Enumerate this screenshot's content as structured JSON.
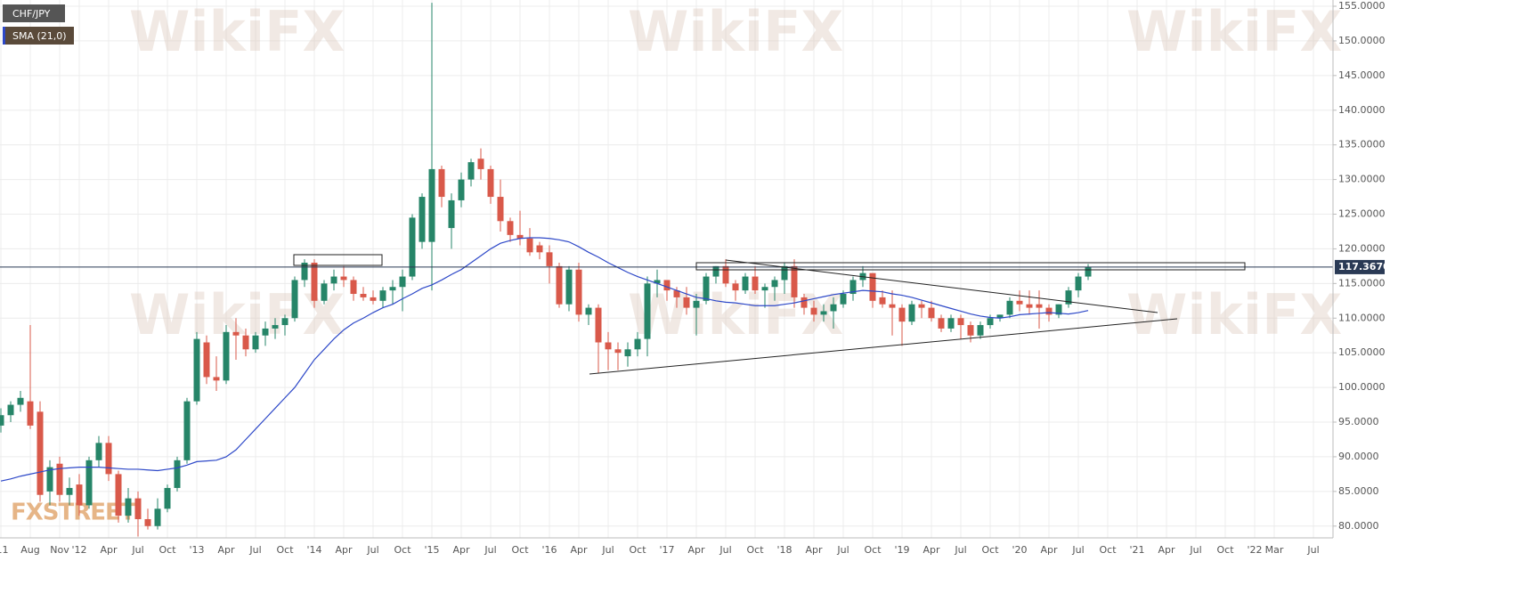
{
  "chart_data": {
    "type": "candlestick",
    "watermark": "WikiFX",
    "logo": "FXSTREET",
    "categories": [
      "'11",
      null,
      null,
      "Aug",
      null,
      null,
      "Nov",
      null,
      "'12",
      null,
      null,
      "Apr",
      null,
      null,
      "Jul",
      null,
      null,
      "Oct",
      null,
      null,
      "'13",
      null,
      null,
      "Apr",
      null,
      null,
      "Jul",
      null,
      null,
      "Oct",
      null,
      null,
      "'14",
      null,
      null,
      "Apr",
      null,
      null,
      "Jul",
      null,
      null,
      "Oct",
      null,
      null,
      "'15",
      null,
      null,
      "Apr",
      null,
      null,
      "Jul",
      null,
      null,
      "Oct",
      null,
      null,
      "'16",
      null,
      null,
      "Apr",
      null,
      null,
      "Jul",
      null,
      null,
      "Oct",
      null,
      null,
      "'17",
      null,
      null,
      "Apr",
      null,
      null,
      "Jul",
      null,
      null,
      "Oct",
      null,
      null,
      "'18",
      null,
      null,
      "Apr",
      null,
      null,
      "Jul",
      null,
      null,
      "Oct",
      null,
      null,
      "'19",
      null,
      null,
      "Apr",
      null,
      null,
      "Jul",
      null,
      null,
      "Oct",
      null,
      null,
      "'20",
      null,
      null,
      "Apr",
      null,
      null,
      "Jul",
      null,
      null,
      "Oct",
      null,
      null,
      "'21",
      null,
      null,
      "Apr",
      null,
      null,
      "Jul",
      null,
      null,
      "Oct",
      null,
      null,
      "'22",
      null,
      "Mar",
      null,
      null,
      null,
      "Jul",
      null
    ],
    "series": [
      {
        "name": "CHF/JPY",
        "up_color": "#268568",
        "down_color": "#d9594a",
        "label_color": "#555555",
        "open": [
          94.5,
          96,
          97.5,
          98,
          96.5,
          85,
          89,
          84.5,
          86,
          83,
          89.5,
          92,
          87.5,
          81.5,
          84,
          81,
          80,
          82.5,
          85.5,
          89.5,
          98,
          106.5,
          101.5,
          101,
          108,
          107.5,
          105.5,
          107.5,
          108.5,
          109,
          110,
          115.5,
          118,
          112.5,
          115,
          116,
          115.5,
          113.5,
          113,
          112.5,
          114,
          114.5,
          116,
          121,
          121,
          131.5,
          123,
          127,
          130,
          133,
          131.5,
          127.5,
          124,
          122,
          121.5,
          120.5,
          119.5,
          117.5,
          112,
          117,
          110.5,
          111.5,
          106.5,
          105.5,
          104.5,
          105.5,
          107,
          115,
          115.5,
          114,
          113,
          111.5,
          112.5,
          116,
          117.5,
          115,
          114,
          116,
          114,
          114.5,
          115.5,
          117.5,
          113,
          111.5,
          110.5,
          111,
          112,
          113.5,
          115.5,
          116.5,
          113,
          112,
          111.5,
          109.5,
          112,
          111.5,
          110,
          108.5,
          110,
          109,
          107.5,
          109,
          110,
          110.5,
          112.5,
          112,
          112,
          111.5,
          110.5,
          112,
          114,
          116,
          null,
          null,
          null,
          null,
          null,
          null,
          null,
          null,
          null,
          null,
          null,
          null,
          null,
          null,
          null,
          null,
          null,
          null,
          null,
          null,
          null,
          null,
          null,
          null
        ],
        "high": [
          97,
          98,
          99.5,
          109,
          98,
          89.5,
          90,
          87,
          87.5,
          90,
          93,
          93,
          88,
          85.5,
          85,
          82.5,
          84,
          86,
          90,
          98.5,
          108,
          107.5,
          104.5,
          109,
          110,
          108.5,
          108,
          109.5,
          110,
          110.5,
          116,
          118.5,
          118.5,
          115.5,
          117,
          117.5,
          116,
          114.5,
          114,
          114.5,
          115.5,
          117,
          125,
          128,
          155.5,
          132,
          128,
          131,
          133,
          134.5,
          132,
          130,
          124.5,
          125.5,
          123,
          121,
          120.5,
          118,
          117.5,
          118,
          112,
          112,
          108,
          106.5,
          106.5,
          108,
          116,
          117,
          115.5,
          114.5,
          114.5,
          113.5,
          116.5,
          117.5,
          118.5,
          115.5,
          116.5,
          117.5,
          115,
          116,
          118,
          118.5,
          113.5,
          112.5,
          112,
          113,
          114,
          116,
          117.5,
          116.5,
          114,
          114,
          112,
          112.5,
          112.5,
          112.5,
          110.5,
          110.5,
          110.5,
          109.5,
          109.5,
          110.5,
          110.5,
          113,
          114,
          114,
          114,
          112,
          112,
          114.5,
          116.5,
          117.8,
          null,
          null,
          null,
          null,
          null,
          null,
          null,
          null,
          null,
          null,
          null,
          null,
          null,
          null,
          null,
          null,
          null,
          null,
          null,
          null,
          null,
          null,
          null,
          null
        ],
        "low": [
          93.5,
          95,
          96.5,
          94,
          83.5,
          83,
          83.5,
          83,
          81.5,
          82.5,
          88.5,
          86.5,
          80.5,
          80.5,
          78.5,
          79.5,
          79.5,
          82,
          85,
          89,
          97.5,
          100.5,
          99.5,
          100.5,
          104,
          104.5,
          105,
          106,
          107,
          107.5,
          109.5,
          114.5,
          111.5,
          112,
          114,
          114.5,
          112.5,
          112.5,
          112,
          111.5,
          112,
          111,
          115.5,
          120,
          114,
          126,
          120,
          126,
          129,
          130,
          126.5,
          122.5,
          121,
          120.5,
          119,
          118.5,
          115,
          111.5,
          111,
          109.5,
          109,
          102,
          102.5,
          102.5,
          103,
          104.5,
          104.5,
          113,
          112.5,
          111.5,
          110.5,
          107.5,
          112,
          115,
          114.5,
          112.5,
          113.5,
          113.5,
          111.5,
          112.5,
          113.5,
          111.5,
          110.5,
          109.5,
          109.5,
          108.5,
          111.5,
          112.5,
          114.5,
          111.5,
          111.5,
          107.5,
          106,
          109,
          110,
          109.5,
          108,
          108,
          107,
          106.5,
          107,
          108.5,
          109.5,
          110,
          111,
          110.5,
          108.5,
          109.5,
          110,
          111.5,
          113,
          115.5,
          null,
          null,
          null,
          null,
          null,
          null,
          null,
          null,
          null,
          null,
          null,
          null,
          null,
          null,
          null,
          null,
          null,
          null,
          null,
          null,
          null,
          null,
          null,
          null
        ],
        "close": [
          96,
          97.5,
          98.5,
          94.5,
          84.5,
          88.5,
          84.5,
          85.5,
          83,
          89.5,
          92,
          87.5,
          81.5,
          84,
          81,
          80,
          82.5,
          85.5,
          89.5,
          98,
          107,
          101.5,
          101,
          108,
          107.5,
          105.5,
          107.5,
          108.5,
          109,
          110,
          115.5,
          118,
          112.5,
          115,
          116,
          115.5,
          113.5,
          113,
          112.5,
          114,
          114.5,
          116,
          124.5,
          127.5,
          131.5,
          127.5,
          127,
          130,
          132.5,
          131.5,
          127.5,
          124,
          122,
          121.5,
          119.5,
          119.5,
          117.5,
          112,
          117,
          110.5,
          111.5,
          106.5,
          105.5,
          105,
          105.5,
          107,
          115,
          115.5,
          114,
          113,
          111.5,
          112.5,
          116,
          117.5,
          115,
          114,
          116,
          114,
          114.5,
          115.5,
          117.5,
          113,
          111.5,
          110.5,
          111,
          112,
          113.5,
          115.5,
          116.5,
          112.5,
          112,
          111.5,
          109.5,
          112,
          111.5,
          110,
          108.5,
          110,
          109,
          107.5,
          109,
          110,
          110.5,
          112.5,
          112,
          111.5,
          111.5,
          110.5,
          112,
          114,
          116,
          117.4,
          null,
          null,
          null,
          null,
          null,
          null,
          null,
          null,
          null,
          null,
          null,
          null,
          null,
          null,
          null,
          null,
          null,
          null,
          null,
          null,
          null,
          null,
          null,
          null
        ]
      },
      {
        "name": "SMA (21,0)",
        "color": "#2d48c8",
        "label_color": "#5a4a3a",
        "values": [
          86.5,
          86.8,
          87.2,
          87.5,
          87.8,
          88.1,
          88.3,
          88.4,
          88.5,
          88.5,
          88.5,
          88.4,
          88.3,
          88.2,
          88.2,
          88.1,
          88,
          88.2,
          88.4,
          88.8,
          89.3,
          89.4,
          89.5,
          90,
          91,
          92.5,
          94,
          95.5,
          97,
          98.5,
          100,
          102,
          104,
          105.5,
          107,
          108.3,
          109.3,
          110,
          110.8,
          111.5,
          112,
          112.8,
          113.5,
          114.3,
          114.8,
          115.5,
          116.3,
          117,
          118,
          119,
          120,
          120.8,
          121.2,
          121.5,
          121.6,
          121.6,
          121.5,
          121.3,
          121,
          120.3,
          119.5,
          118.8,
          118,
          117.3,
          116.6,
          116,
          115.5,
          115,
          114.5,
          114,
          113.5,
          113,
          112.8,
          112.5,
          112.3,
          112.2,
          112,
          111.8,
          111.8,
          111.8,
          112,
          112.2,
          112.5,
          112.8,
          113.1,
          113.4,
          113.6,
          113.8,
          114,
          113.9,
          113.8,
          113.5,
          113.3,
          113,
          112.6,
          112.2,
          111.8,
          111.4,
          111,
          110.6,
          110.3,
          110.1,
          110,
          110.2,
          110.5,
          110.6,
          110.7,
          110.8,
          110.7,
          110.6,
          110.8,
          111.1,
          null,
          null,
          null,
          null,
          null,
          null,
          null,
          null,
          null,
          null,
          null,
          null,
          null,
          null,
          null,
          null,
          null,
          null,
          null,
          null,
          null,
          null,
          null,
          null
        ]
      }
    ],
    "last_price": {
      "value": 117.367,
      "label": "117.3670"
    },
    "ylim": [
      78.3,
      155.9
    ],
    "yticks": [
      {
        "value": 80,
        "label": "80.0000"
      },
      {
        "value": 85,
        "label": "85.0000"
      },
      {
        "value": 90,
        "label": "90.0000"
      },
      {
        "value": 95,
        "label": "95.0000"
      },
      {
        "value": 100,
        "label": "100.0000"
      },
      {
        "value": 105,
        "label": "105.0000"
      },
      {
        "value": 110,
        "label": "110.0000"
      },
      {
        "value": 115,
        "label": "115.0000"
      },
      {
        "value": 120,
        "label": "120.0000"
      },
      {
        "value": 125,
        "label": "125.0000"
      },
      {
        "value": 130,
        "label": "130.0000"
      },
      {
        "value": 135,
        "label": "135.0000"
      },
      {
        "value": 140,
        "label": "140.0000"
      },
      {
        "value": 145,
        "label": "145.0000"
      },
      {
        "value": 150,
        "label": "150.0000"
      },
      {
        "value": 155,
        "label": "155.0000"
      }
    ],
    "grid": true
  }
}
